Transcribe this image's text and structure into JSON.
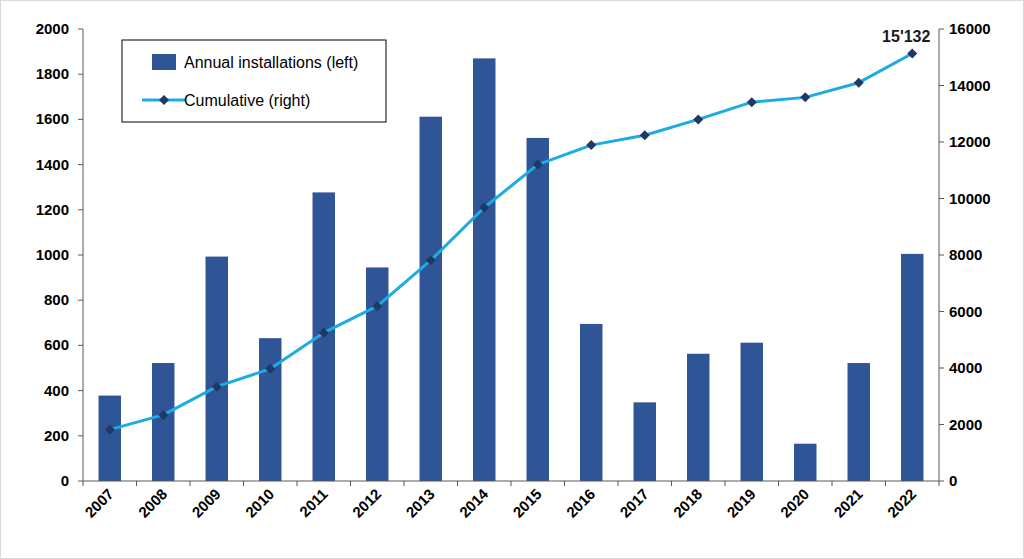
{
  "chart_data": {
    "type": "bar",
    "categories": [
      "2007",
      "2008",
      "2009",
      "2010",
      "2011",
      "2012",
      "2013",
      "2014",
      "2015",
      "2016",
      "2017",
      "2018",
      "2019",
      "2020",
      "2021",
      "2022"
    ],
    "series": [
      {
        "name": "Annual installations (left)",
        "type": "bar",
        "color": "#2f5597",
        "values": [
          378,
          522,
          993,
          632,
          1277,
          945,
          1612,
          1870,
          1518,
          695,
          348,
          563,
          612,
          165,
          522,
          1005
        ]
      },
      {
        "name": "Cumulative (right)",
        "type": "line",
        "axis": "y2",
        "color": "#1cabe2",
        "marker": "diamond",
        "line_style": "solid",
        "values": [
          1820,
          2340,
          3340,
          3970,
          5250,
          6190,
          7810,
          9680,
          11200,
          11890,
          12240,
          12800,
          13410,
          13580,
          14100,
          15132
        ],
        "value_labels": [
          null,
          null,
          null,
          null,
          null,
          null,
          null,
          null,
          null,
          null,
          null,
          null,
          null,
          null,
          null,
          "15'132"
        ]
      }
    ],
    "ylim": [
      0,
      2000
    ],
    "yticks": [
      0,
      200,
      400,
      600,
      800,
      1000,
      1200,
      1400,
      1600,
      1800,
      2000
    ],
    "y2lim": [
      0,
      16000
    ],
    "y2ticks": [
      0,
      2000,
      4000,
      6000,
      8000,
      10000,
      12000,
      14000,
      16000
    ],
    "grid": false,
    "legend": "upper-left"
  }
}
